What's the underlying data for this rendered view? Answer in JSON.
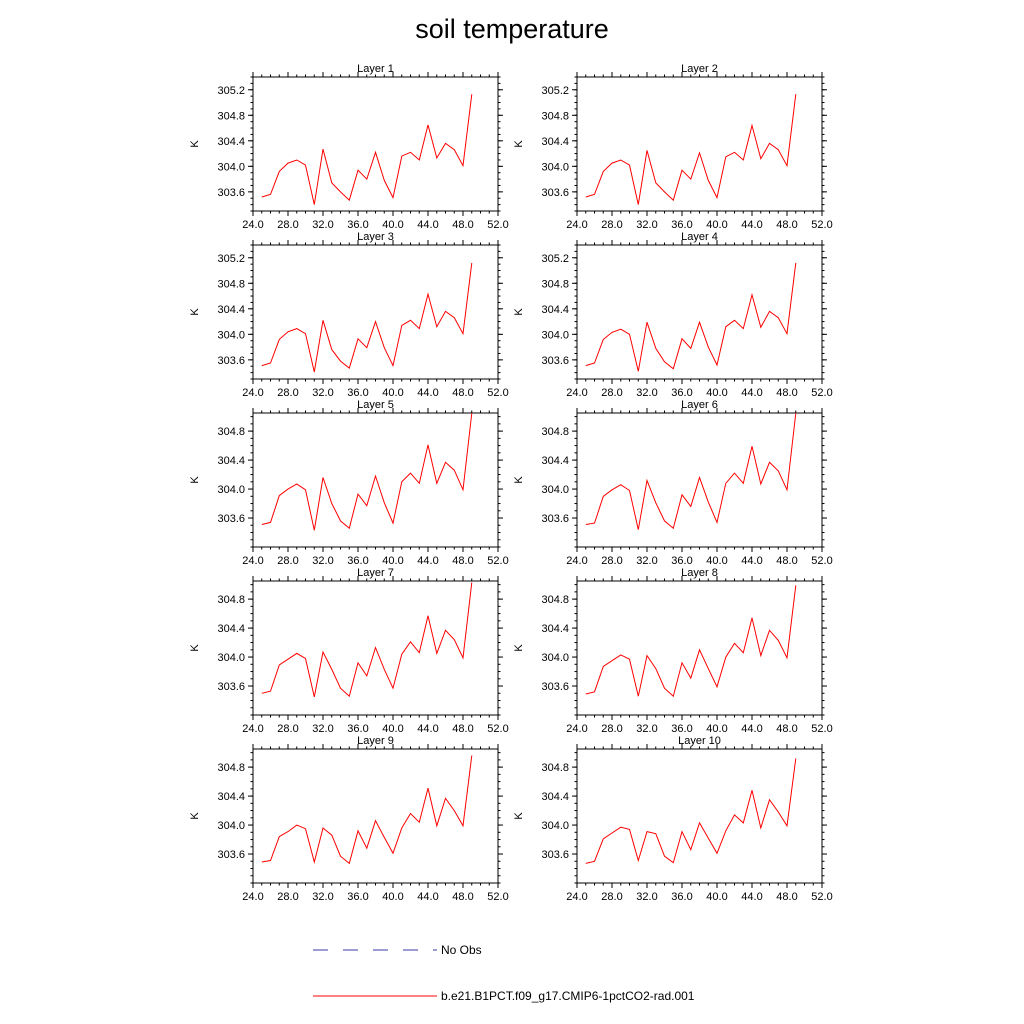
{
  "title": "soil temperature",
  "legend": [
    {
      "label": "No Obs",
      "color": "#3a3aa8",
      "style": "dashed"
    },
    {
      "label": "b.e21.B1PCT.f09_g17.CMIP6-1pctCO2-rad.001",
      "color": "#ff0000",
      "style": "solid"
    }
  ],
  "chart_data": [
    {
      "type": "line",
      "title": "Layer 1",
      "ylabel": "K",
      "xlim": [
        24,
        52
      ],
      "ylim": [
        303.3,
        305.4
      ],
      "xticks": [
        "24.0",
        "28.0",
        "32.0",
        "36.0",
        "40.0",
        "44.0",
        "48.0",
        "52.0"
      ],
      "yticks": [
        "303.6",
        "304.0",
        "304.4",
        "304.8",
        "305.2"
      ],
      "series": [
        {
          "color": "#ff0000",
          "x": [
            25,
            26,
            27,
            28,
            29,
            30,
            31,
            32,
            33,
            34,
            35,
            36,
            37,
            38,
            39,
            40,
            41,
            42,
            43,
            44,
            45,
            46,
            47,
            48,
            49
          ],
          "values": [
            303.52,
            303.56,
            303.92,
            304.05,
            304.1,
            304.02,
            303.4,
            304.27,
            303.74,
            303.6,
            303.47,
            303.94,
            303.8,
            304.22,
            303.78,
            303.51,
            304.16,
            304.22,
            304.1,
            304.65,
            304.13,
            304.36,
            304.26,
            304.01,
            305.13
          ]
        }
      ]
    },
    {
      "type": "line",
      "title": "Layer 2",
      "ylabel": "K",
      "xlim": [
        24,
        52
      ],
      "ylim": [
        303.3,
        305.4
      ],
      "xticks": [
        "24.0",
        "28.0",
        "32.0",
        "36.0",
        "40.0",
        "44.0",
        "48.0",
        "52.0"
      ],
      "yticks": [
        "303.6",
        "304.0",
        "304.4",
        "304.8",
        "305.2"
      ],
      "series": [
        {
          "color": "#ff0000",
          "x": [
            25,
            26,
            27,
            28,
            29,
            30,
            31,
            32,
            33,
            34,
            35,
            36,
            37,
            38,
            39,
            40,
            41,
            42,
            43,
            44,
            45,
            46,
            47,
            48,
            49
          ],
          "values": [
            303.52,
            303.56,
            303.92,
            304.05,
            304.1,
            304.02,
            303.4,
            304.25,
            303.74,
            303.6,
            303.47,
            303.94,
            303.8,
            304.21,
            303.78,
            303.51,
            304.15,
            304.22,
            304.1,
            304.64,
            304.12,
            304.36,
            304.26,
            304.01,
            305.13
          ]
        }
      ]
    },
    {
      "type": "line",
      "title": "Layer 3",
      "ylabel": "K",
      "xlim": [
        24,
        52
      ],
      "ylim": [
        303.3,
        305.4
      ],
      "xticks": [
        "24.0",
        "28.0",
        "32.0",
        "36.0",
        "40.0",
        "44.0",
        "48.0",
        "52.0"
      ],
      "yticks": [
        "303.6",
        "304.0",
        "304.4",
        "304.8",
        "305.2"
      ],
      "series": [
        {
          "color": "#ff0000",
          "x": [
            25,
            26,
            27,
            28,
            29,
            30,
            31,
            32,
            33,
            34,
            35,
            36,
            37,
            38,
            39,
            40,
            41,
            42,
            43,
            44,
            45,
            46,
            47,
            48,
            49
          ],
          "values": [
            303.51,
            303.55,
            303.92,
            304.04,
            304.09,
            304.01,
            303.41,
            304.22,
            303.76,
            303.58,
            303.47,
            303.93,
            303.79,
            304.2,
            303.79,
            303.51,
            304.14,
            304.22,
            304.09,
            304.63,
            304.12,
            304.36,
            304.26,
            304.01,
            305.12
          ]
        }
      ]
    },
    {
      "type": "line",
      "title": "Layer 4",
      "ylabel": "K",
      "xlim": [
        24,
        52
      ],
      "ylim": [
        303.3,
        305.4
      ],
      "xticks": [
        "24.0",
        "28.0",
        "32.0",
        "36.0",
        "40.0",
        "44.0",
        "48.0",
        "52.0"
      ],
      "yticks": [
        "303.6",
        "304.0",
        "304.4",
        "304.8",
        "305.2"
      ],
      "series": [
        {
          "color": "#ff0000",
          "x": [
            25,
            26,
            27,
            28,
            29,
            30,
            31,
            32,
            33,
            34,
            35,
            36,
            37,
            38,
            39,
            40,
            41,
            42,
            43,
            44,
            45,
            46,
            47,
            48,
            49
          ],
          "values": [
            303.51,
            303.55,
            303.92,
            304.03,
            304.08,
            304.0,
            303.42,
            304.19,
            303.78,
            303.57,
            303.46,
            303.93,
            303.78,
            304.19,
            303.8,
            303.52,
            304.12,
            304.22,
            304.09,
            304.62,
            304.11,
            304.36,
            304.26,
            304.01,
            305.12
          ]
        }
      ]
    },
    {
      "type": "line",
      "title": "Layer 5",
      "ylabel": "K",
      "xlim": [
        24,
        52
      ],
      "ylim": [
        303.2,
        305.05
      ],
      "xticks": [
        "24.0",
        "28.0",
        "32.0",
        "36.0",
        "40.0",
        "44.0",
        "48.0",
        "52.0"
      ],
      "yticks": [
        "303.6",
        "304.0",
        "304.4",
        "304.8"
      ],
      "series": [
        {
          "color": "#ff0000",
          "x": [
            25,
            26,
            27,
            28,
            29,
            30,
            31,
            32,
            33,
            34,
            35,
            36,
            37,
            38,
            39,
            40,
            41,
            42,
            43,
            44,
            45,
            46,
            47,
            48,
            49
          ],
          "values": [
            303.51,
            303.54,
            303.91,
            304.0,
            304.07,
            303.99,
            303.43,
            304.16,
            303.8,
            303.56,
            303.46,
            303.93,
            303.77,
            304.18,
            303.81,
            303.53,
            304.1,
            304.22,
            304.08,
            304.61,
            304.08,
            304.37,
            304.26,
            303.99,
            305.05
          ]
        }
      ]
    },
    {
      "type": "line",
      "title": "Layer 6",
      "ylabel": "K",
      "xlim": [
        24,
        52
      ],
      "ylim": [
        303.2,
        305.05
      ],
      "xticks": [
        "24.0",
        "28.0",
        "32.0",
        "36.0",
        "40.0",
        "44.0",
        "48.0",
        "52.0"
      ],
      "yticks": [
        "303.6",
        "304.0",
        "304.4",
        "304.8"
      ],
      "series": [
        {
          "color": "#ff0000",
          "x": [
            25,
            26,
            27,
            28,
            29,
            30,
            31,
            32,
            33,
            34,
            35,
            36,
            37,
            38,
            39,
            40,
            41,
            42,
            43,
            44,
            45,
            46,
            47,
            48,
            49
          ],
          "values": [
            303.51,
            303.53,
            303.9,
            303.99,
            304.06,
            303.98,
            303.44,
            304.12,
            303.81,
            303.56,
            303.46,
            303.92,
            303.76,
            304.16,
            303.82,
            303.54,
            304.08,
            304.22,
            304.08,
            304.59,
            304.07,
            304.37,
            304.25,
            303.99,
            305.05
          ]
        }
      ]
    },
    {
      "type": "line",
      "title": "Layer 7",
      "ylabel": "K",
      "xlim": [
        24,
        52
      ],
      "ylim": [
        303.2,
        305.05
      ],
      "xticks": [
        "24.0",
        "28.0",
        "32.0",
        "36.0",
        "40.0",
        "44.0",
        "48.0",
        "52.0"
      ],
      "yticks": [
        "303.6",
        "304.0",
        "304.4",
        "304.8"
      ],
      "series": [
        {
          "color": "#ff0000",
          "x": [
            25,
            26,
            27,
            28,
            29,
            30,
            31,
            32,
            33,
            34,
            35,
            36,
            37,
            38,
            39,
            40,
            41,
            42,
            43,
            44,
            45,
            46,
            47,
            48,
            49
          ],
          "values": [
            303.5,
            303.53,
            303.89,
            303.97,
            304.05,
            303.98,
            303.45,
            304.07,
            303.83,
            303.57,
            303.46,
            303.92,
            303.74,
            304.13,
            303.83,
            303.57,
            304.04,
            304.21,
            304.06,
            304.57,
            304.05,
            304.37,
            304.24,
            303.99,
            305.03
          ]
        }
      ]
    },
    {
      "type": "line",
      "title": "Layer 8",
      "ylabel": "K",
      "xlim": [
        24,
        52
      ],
      "ylim": [
        303.2,
        305.05
      ],
      "xticks": [
        "24.0",
        "28.0",
        "32.0",
        "36.0",
        "40.0",
        "44.0",
        "48.0",
        "52.0"
      ],
      "yticks": [
        "303.6",
        "304.0",
        "304.4",
        "304.8"
      ],
      "series": [
        {
          "color": "#ff0000",
          "x": [
            25,
            26,
            27,
            28,
            29,
            30,
            31,
            32,
            33,
            34,
            35,
            36,
            37,
            38,
            39,
            40,
            41,
            42,
            43,
            44,
            45,
            46,
            47,
            48,
            49
          ],
          "values": [
            303.49,
            303.52,
            303.87,
            303.95,
            304.03,
            303.97,
            303.46,
            304.02,
            303.84,
            303.57,
            303.46,
            303.92,
            303.71,
            304.1,
            303.84,
            303.59,
            304.0,
            304.19,
            304.06,
            304.54,
            304.02,
            304.37,
            304.23,
            303.99,
            304.99
          ]
        }
      ]
    },
    {
      "type": "line",
      "title": "Layer 9",
      "ylabel": "K",
      "xlim": [
        24,
        52
      ],
      "ylim": [
        303.2,
        305.05
      ],
      "xticks": [
        "24.0",
        "28.0",
        "32.0",
        "36.0",
        "40.0",
        "44.0",
        "48.0",
        "52.0"
      ],
      "yticks": [
        "303.6",
        "304.0",
        "304.4",
        "304.8"
      ],
      "series": [
        {
          "color": "#ff0000",
          "x": [
            25,
            26,
            27,
            28,
            29,
            30,
            31,
            32,
            33,
            34,
            35,
            36,
            37,
            38,
            39,
            40,
            41,
            42,
            43,
            44,
            45,
            46,
            47,
            48,
            49
          ],
          "values": [
            303.49,
            303.51,
            303.84,
            303.91,
            304.0,
            303.95,
            303.49,
            303.96,
            303.86,
            303.57,
            303.47,
            303.92,
            303.68,
            304.06,
            303.83,
            303.61,
            303.96,
            304.16,
            304.04,
            304.51,
            303.99,
            304.37,
            304.2,
            303.99,
            304.96
          ]
        }
      ]
    },
    {
      "type": "line",
      "title": "Layer 10",
      "ylabel": "K",
      "xlim": [
        24,
        52
      ],
      "ylim": [
        303.2,
        305.05
      ],
      "xticks": [
        "24.0",
        "28.0",
        "32.0",
        "36.0",
        "40.0",
        "44.0",
        "48.0",
        "52.0"
      ],
      "yticks": [
        "303.6",
        "304.0",
        "304.4",
        "304.8"
      ],
      "series": [
        {
          "color": "#ff0000",
          "x": [
            25,
            26,
            27,
            28,
            29,
            30,
            31,
            32,
            33,
            34,
            35,
            36,
            37,
            38,
            39,
            40,
            41,
            42,
            43,
            44,
            45,
            46,
            47,
            48,
            49
          ],
          "values": [
            303.47,
            303.5,
            303.81,
            303.89,
            303.97,
            303.94,
            303.51,
            303.91,
            303.88,
            303.57,
            303.48,
            303.91,
            303.66,
            304.03,
            303.82,
            303.61,
            303.92,
            304.14,
            304.03,
            304.48,
            303.96,
            304.35,
            304.18,
            303.99,
            304.92
          ]
        }
      ]
    }
  ]
}
